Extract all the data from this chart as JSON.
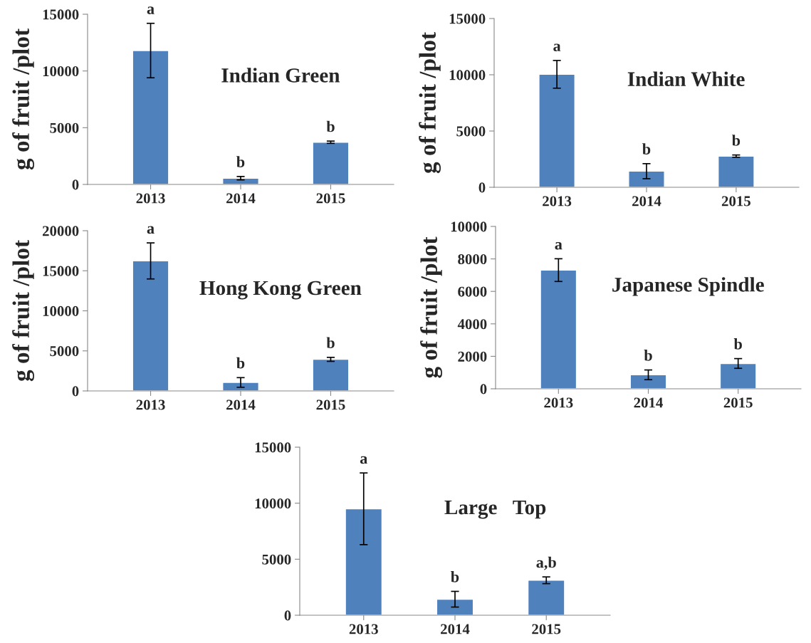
{
  "chart_data": [
    {
      "type": "bar",
      "title": "Indian Green",
      "ylabel": "g of fruit /plot",
      "categories": [
        "2013",
        "2014",
        "2015"
      ],
      "values": [
        11800,
        550,
        3720
      ],
      "errors": [
        2400,
        150,
        100
      ],
      "color": "#4f81bd",
      "ylim": [
        0,
        15000
      ],
      "yticks": [
        0,
        5000,
        10000,
        15000
      ],
      "annotations": [
        {
          "text": "a",
          "x": "2013",
          "y": 14200
        },
        {
          "text": "b",
          "x": "2014",
          "y": 700
        },
        {
          "text": "b",
          "x": "2015",
          "y": 3820
        }
      ]
    },
    {
      "type": "bar",
      "title": "Indian White",
      "ylabel": "g of fruit /plot",
      "categories": [
        "2013",
        "2014",
        "2015"
      ],
      "values": [
        10040,
        1430,
        2770
      ],
      "errors": [
        1230,
        670,
        100
      ],
      "color": "#4f81bd",
      "ylim": [
        0,
        15000
      ],
      "yticks": [
        0,
        5000,
        10000,
        15000
      ],
      "annotations": [
        {
          "text": "a",
          "x": "2013",
          "y": 11270
        },
        {
          "text": "b",
          "x": "2014",
          "y": 2100
        },
        {
          "text": "b",
          "x": "2015",
          "y": 2870
        }
      ]
    },
    {
      "type": "bar",
      "title": "Hong Kong Green",
      "ylabel": "g of fruit /plot",
      "categories": [
        "2013",
        "2014",
        "2015"
      ],
      "values": [
        16230,
        1060,
        3940
      ],
      "errors": [
        2250,
        600,
        250
      ],
      "color": "#4f81bd",
      "ylim": [
        0,
        20000
      ],
      "yticks": [
        0,
        5000,
        10000,
        15000,
        20000
      ],
      "annotations": [
        {
          "text": "a",
          "x": "2013",
          "y": 18480
        },
        {
          "text": "b",
          "x": "2014",
          "y": 1660
        },
        {
          "text": "b",
          "x": "2015",
          "y": 4190
        }
      ]
    },
    {
      "type": "bar",
      "title": "Japanese Spindle",
      "ylabel": "g of fruit /plot",
      "categories": [
        "2013",
        "2014",
        "2015"
      ],
      "values": [
        7310,
        860,
        1560
      ],
      "errors": [
        700,
        300,
        300
      ],
      "color": "#4f81bd",
      "ylim": [
        0,
        10000
      ],
      "yticks": [
        0,
        2000,
        4000,
        6000,
        8000,
        10000
      ],
      "annotations": [
        {
          "text": "a",
          "x": "2013",
          "y": 8010
        },
        {
          "text": "b",
          "x": "2014",
          "y": 1160
        },
        {
          "text": "b",
          "x": "2015",
          "y": 1860
        }
      ]
    },
    {
      "type": "bar",
      "title": "Large   Top",
      "categories": [
        "2013",
        "2014",
        "2015"
      ],
      "values": [
        9500,
        1430,
        3120
      ],
      "errors": [
        3200,
        700,
        300
      ],
      "color": "#4f81bd",
      "ylim": [
        0,
        15000
      ],
      "yticks": [
        0,
        5000,
        10000,
        15000
      ],
      "annotations": [
        {
          "text": "a",
          "x": "2013",
          "y": 12700
        },
        {
          "text": "b",
          "x": "2014",
          "y": 2130
        },
        {
          "text": "a,b",
          "x": "2015",
          "y": 3420
        }
      ]
    }
  ]
}
